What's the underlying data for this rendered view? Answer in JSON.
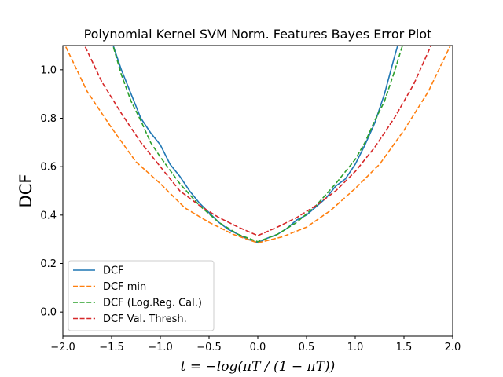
{
  "chart_data": {
    "type": "line",
    "title": "Polynomial Kernel SVM Norm. Features Bayes Error Plot",
    "ylabel": "DCF",
    "xlabel": "t = −log(πT / (1 − πT))",
    "xlim": [
      -2.0,
      2.0
    ],
    "ylim": [
      -0.1,
      1.1
    ],
    "xticks": [
      -2.0,
      -1.5,
      -1.0,
      -0.5,
      0.0,
      0.5,
      1.0,
      1.5,
      2.0
    ],
    "xtick_labels": [
      "−2.0",
      "−1.5",
      "−1.0",
      "−0.5",
      "0.0",
      "0.5",
      "1.0",
      "1.5",
      "2.0"
    ],
    "yticks": [
      0.0,
      0.2,
      0.4,
      0.6,
      0.8,
      1.0
    ],
    "ytick_labels": [
      "0.0",
      "0.2",
      "0.4",
      "0.6",
      "0.8",
      "1.0"
    ],
    "grid": false,
    "legend_position": "lower-left",
    "series": [
      {
        "name": "DCF",
        "color": "#1f77b4",
        "dash": "solid",
        "points": [
          [
            -1.5,
            1.12
          ],
          [
            -1.4,
            1.0
          ],
          [
            -1.3,
            0.9
          ],
          [
            -1.2,
            0.8
          ],
          [
            -1.1,
            0.74
          ],
          [
            -1.0,
            0.69
          ],
          [
            -0.9,
            0.61
          ],
          [
            -0.8,
            0.56
          ],
          [
            -0.7,
            0.5
          ],
          [
            -0.6,
            0.45
          ],
          [
            -0.5,
            0.41
          ],
          [
            -0.4,
            0.37
          ],
          [
            -0.3,
            0.34
          ],
          [
            -0.2,
            0.32
          ],
          [
            -0.1,
            0.3
          ],
          [
            0.0,
            0.285
          ],
          [
            0.1,
            0.305
          ],
          [
            0.2,
            0.32
          ],
          [
            0.3,
            0.345
          ],
          [
            0.4,
            0.38
          ],
          [
            0.5,
            0.4
          ],
          [
            0.6,
            0.435
          ],
          [
            0.7,
            0.47
          ],
          [
            0.8,
            0.52
          ],
          [
            0.9,
            0.55
          ],
          [
            1.0,
            0.61
          ],
          [
            1.1,
            0.69
          ],
          [
            1.2,
            0.78
          ],
          [
            1.3,
            0.9
          ],
          [
            1.4,
            1.05
          ],
          [
            1.45,
            1.12
          ]
        ]
      },
      {
        "name": "DCF min",
        "color": "#ff7f0e",
        "dash": "dashed",
        "points": [
          [
            -2.0,
            1.12
          ],
          [
            -1.75,
            0.91
          ],
          [
            -1.5,
            0.76
          ],
          [
            -1.25,
            0.62
          ],
          [
            -1.0,
            0.53
          ],
          [
            -0.75,
            0.43
          ],
          [
            -0.5,
            0.37
          ],
          [
            -0.25,
            0.32
          ],
          [
            0.0,
            0.285
          ],
          [
            0.25,
            0.31
          ],
          [
            0.5,
            0.35
          ],
          [
            0.75,
            0.42
          ],
          [
            1.0,
            0.51
          ],
          [
            1.25,
            0.61
          ],
          [
            1.5,
            0.75
          ],
          [
            1.75,
            0.91
          ],
          [
            2.0,
            1.12
          ]
        ]
      },
      {
        "name": "DCF (Log.Reg. Cal.)",
        "color": "#2ca02c",
        "dash": "dashed",
        "points": [
          [
            -1.5,
            1.12
          ],
          [
            -1.4,
            0.98
          ],
          [
            -1.3,
            0.87
          ],
          [
            -1.2,
            0.79
          ],
          [
            -1.1,
            0.7
          ],
          [
            -1.0,
            0.64
          ],
          [
            -0.8,
            0.53
          ],
          [
            -0.6,
            0.44
          ],
          [
            -0.4,
            0.37
          ],
          [
            -0.2,
            0.32
          ],
          [
            0.0,
            0.29
          ],
          [
            0.2,
            0.32
          ],
          [
            0.4,
            0.37
          ],
          [
            0.6,
            0.44
          ],
          [
            0.8,
            0.53
          ],
          [
            1.0,
            0.63
          ],
          [
            1.1,
            0.7
          ],
          [
            1.2,
            0.79
          ],
          [
            1.3,
            0.87
          ],
          [
            1.4,
            0.99
          ],
          [
            1.5,
            1.12
          ]
        ]
      },
      {
        "name": "DCF Val. Thresh.",
        "color": "#d62728",
        "dash": "dashed",
        "points": [
          [
            -1.8,
            1.12
          ],
          [
            -1.6,
            0.95
          ],
          [
            -1.4,
            0.82
          ],
          [
            -1.2,
            0.7
          ],
          [
            -1.0,
            0.6
          ],
          [
            -0.8,
            0.5
          ],
          [
            -0.6,
            0.44
          ],
          [
            -0.4,
            0.39
          ],
          [
            -0.2,
            0.35
          ],
          [
            0.0,
            0.315
          ],
          [
            0.2,
            0.35
          ],
          [
            0.4,
            0.39
          ],
          [
            0.6,
            0.44
          ],
          [
            0.8,
            0.5
          ],
          [
            1.0,
            0.58
          ],
          [
            1.2,
            0.68
          ],
          [
            1.4,
            0.8
          ],
          [
            1.6,
            0.94
          ],
          [
            1.8,
            1.12
          ]
        ]
      }
    ]
  }
}
